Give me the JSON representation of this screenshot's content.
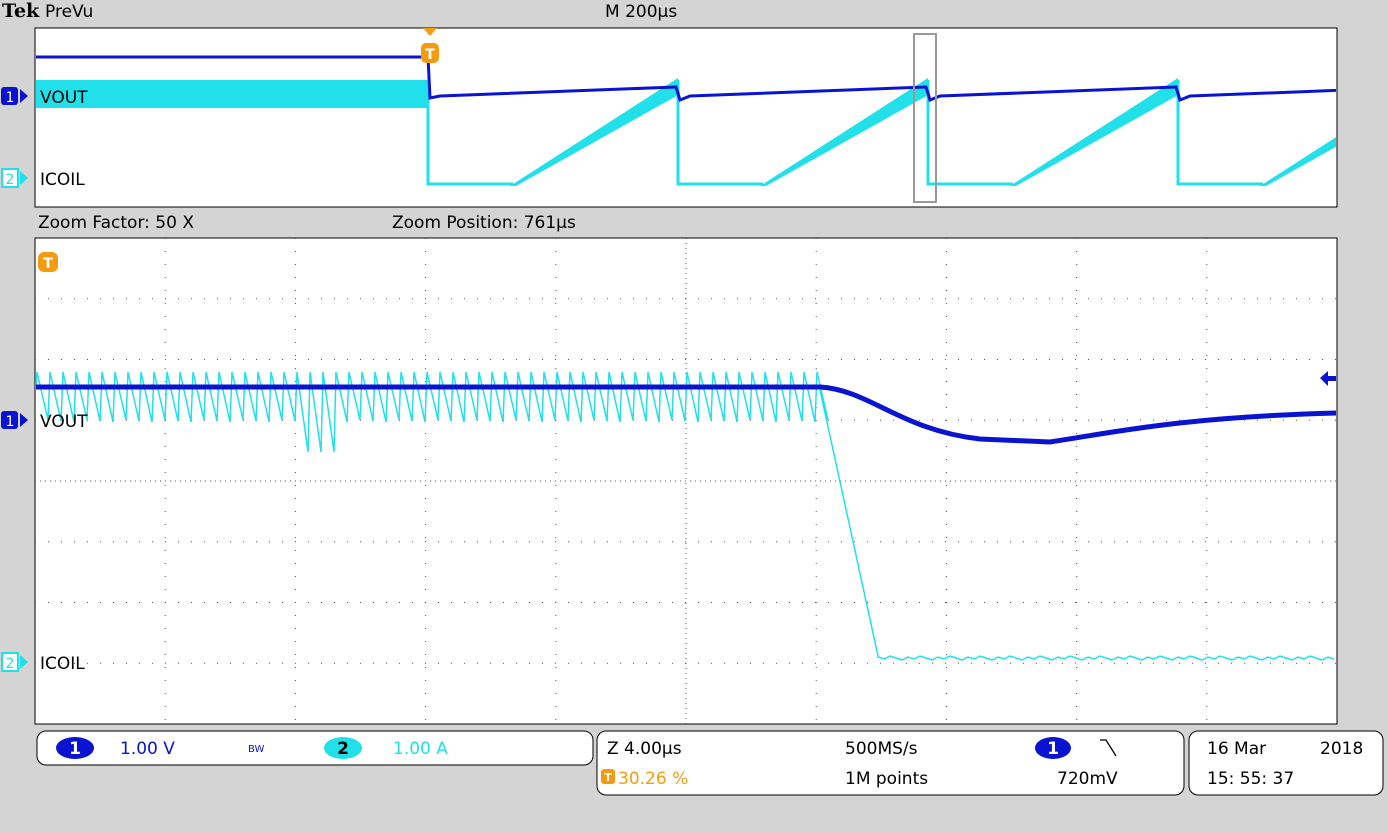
{
  "header": {
    "brand": "Tek",
    "mode": "PreVu",
    "timebase": "M 200µs"
  },
  "overview": {
    "trigger_marker": "T",
    "channels": [
      {
        "badge": "1",
        "label": "VOUT"
      },
      {
        "badge": "2",
        "label": "ICOIL"
      }
    ]
  },
  "zoom": {
    "factor": "Zoom Factor: 50 X",
    "position": "Zoom Position: 761µs",
    "trigger_marker": "T",
    "channels": [
      {
        "badge": "1",
        "label": "VOUT"
      },
      {
        "badge": "2",
        "label": "ICOIL"
      }
    ]
  },
  "status": {
    "ch1": {
      "badge": "1",
      "scale": "1.00 V",
      "bandwidth": "BW"
    },
    "ch2": {
      "badge": "2",
      "scale": "1.00 A"
    },
    "zoom_scale": "Z 4.00µs",
    "trigger_badge": "T",
    "trigger_position": "30.26 %",
    "sample_rate": "500MS/s",
    "record_length": "1M points",
    "trigger_channel": "1",
    "trigger_level": "720mV",
    "date": "16 Mar",
    "year": "2018",
    "time": "15: 55: 37"
  }
}
